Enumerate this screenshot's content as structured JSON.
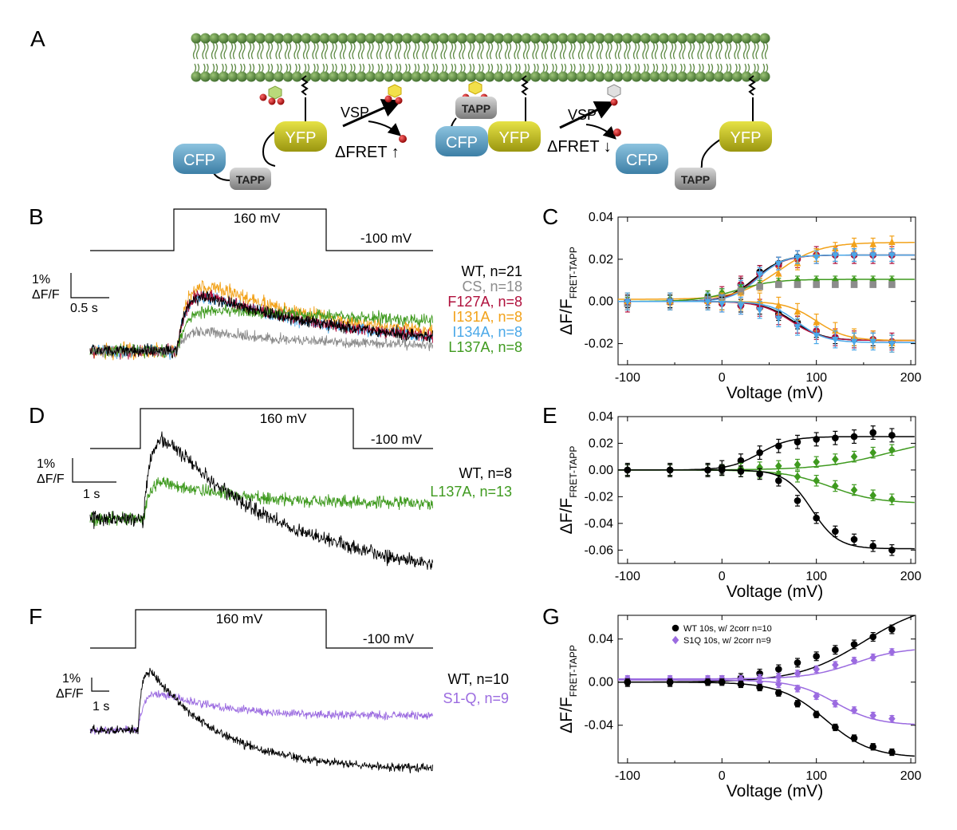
{
  "panels": {
    "A": "A",
    "B": "B",
    "C": "C",
    "D": "D",
    "E": "E",
    "F": "F",
    "G": "G"
  },
  "schematic": {
    "vsp": "VSP",
    "dfret_up": "ΔFRET ↑",
    "dfret_down": "ΔFRET ↓",
    "cfp": "CFP",
    "yfp": "YFP",
    "tapp": "TAPP"
  },
  "protocol": {
    "step_label": "160 mV",
    "hold_label": "-100 mV"
  },
  "scale_bars": {
    "y_label_1": "1%",
    "y_label_2": "ΔF/F",
    "B_time": "0.5 s",
    "D_time": "1 s",
    "F_time": "1 s"
  },
  "legends": {
    "B": [
      {
        "label": "WT, n=21",
        "color": "#000000"
      },
      {
        "label": "CS, n=18",
        "color": "#8c8c8c"
      },
      {
        "label": "F127A, n=8",
        "color": "#b0103c"
      },
      {
        "label": "I131A, n=8",
        "color": "#f2a21a"
      },
      {
        "label": "I134A, n=8",
        "color": "#4aa8e8"
      },
      {
        "label": "L137A, n=8",
        "color": "#3f9a1f"
      }
    ],
    "D": [
      {
        "label": "WT, n=8",
        "color": "#000000"
      },
      {
        "label": "L137A, n=13",
        "color": "#3f9a1f"
      }
    ],
    "F": [
      {
        "label": "WT, n=10",
        "color": "#000000"
      },
      {
        "label": "S1-Q, n=9",
        "color": "#9b6be0"
      }
    ]
  },
  "chart_data": [
    {
      "panel": "C",
      "type": "scatter",
      "xlabel": "Voltage (mV)",
      "ylabel_main": "ΔF/F",
      "ylabel_sub": "FRET-TAPP",
      "xlim": [
        -110,
        205
      ],
      "ylim": [
        -0.03,
        0.04
      ],
      "xticks": [
        -100,
        0,
        100,
        200
      ],
      "xtick_labels": [
        "-100",
        "0",
        "100",
        "200"
      ],
      "yticks": [
        -0.02,
        0.0,
        0.02,
        0.04
      ],
      "ytick_labels": [
        "-0.02",
        "0.00",
        "0.02",
        "0.04"
      ],
      "x": [
        -100,
        -55,
        -15,
        0,
        20,
        40,
        60,
        80,
        100,
        120,
        140,
        160,
        180
      ],
      "series": [
        {
          "color": "#000000",
          "marker": "circle",
          "values": [
            -0.001,
            0.0,
            0.001,
            0.003,
            0.008,
            0.014,
            0.018,
            0.021,
            0.022,
            0.022,
            0.022,
            0.022,
            0.022
          ],
          "err": 0.003,
          "fit": {
            "a": 0.0,
            "b": 0.022,
            "v": 35,
            "k": 15
          }
        },
        {
          "color": "#b0103c",
          "marker": "circle",
          "values": [
            -0.001,
            0.0,
            0.001,
            0.003,
            0.008,
            0.013,
            0.017,
            0.02,
            0.022,
            0.022,
            0.022,
            0.022,
            0.022
          ],
          "err": 0.004,
          "fit": {
            "a": 0.0,
            "b": 0.022,
            "v": 37,
            "k": 15
          }
        },
        {
          "color": "#f2a21a",
          "marker": "triangle",
          "values": [
            0.001,
            0.001,
            0.001,
            0.002,
            0.004,
            0.008,
            0.013,
            0.018,
            0.022,
            0.025,
            0.027,
            0.027,
            0.028
          ],
          "err": 0.003,
          "fit": {
            "a": 0.001,
            "b": 0.028,
            "v": 60,
            "k": 22
          }
        },
        {
          "color": "#4aa8e8",
          "marker": "tri-down",
          "values": [
            -0.001,
            0.0,
            0.001,
            0.003,
            0.007,
            0.013,
            0.018,
            0.021,
            0.021,
            0.022,
            0.022,
            0.022,
            0.022
          ],
          "err": 0.003,
          "fit": {
            "a": 0.0,
            "b": 0.022,
            "v": 38,
            "k": 14
          }
        },
        {
          "color": "#3f9a1f",
          "marker": "diamond",
          "values": [
            0.0,
            0.001,
            0.003,
            0.004,
            0.006,
            0.008,
            0.009,
            0.01,
            0.01,
            0.01,
            0.01,
            0.01,
            0.01
          ],
          "err": 0.002,
          "fit": {
            "a": 0.0,
            "b": 0.0105,
            "v": 15,
            "k": 20
          }
        },
        {
          "color": "#8c8c8c",
          "marker": "square",
          "values": [
            -0.001,
            0.0,
            0.001,
            0.002,
            0.005,
            0.007,
            0.008,
            0.008,
            0.008,
            0.008,
            0.008,
            0.008,
            0.008
          ],
          "err": 0.0,
          "fit": null
        },
        {
          "color": "#000000",
          "marker": "circle",
          "values": [
            0.0,
            0.0,
            0.0,
            -0.001,
            -0.002,
            -0.003,
            -0.006,
            -0.01,
            -0.014,
            -0.017,
            -0.018,
            -0.018,
            -0.019
          ],
          "err": 0.003,
          "fit": {
            "a": 0.0,
            "b": -0.0185,
            "v": 75,
            "k": 16
          }
        },
        {
          "color": "#b0103c",
          "marker": "circle",
          "values": [
            0.0,
            0.0,
            0.0,
            -0.001,
            -0.002,
            -0.003,
            -0.007,
            -0.011,
            -0.014,
            -0.017,
            -0.018,
            -0.018,
            -0.019
          ],
          "err": 0.004,
          "fit": {
            "a": 0.0,
            "b": -0.0185,
            "v": 73,
            "k": 16
          }
        },
        {
          "color": "#f2a21a",
          "marker": "triangle",
          "values": [
            0.0,
            0.0,
            0.0,
            0.0,
            0.0,
            0.0,
            -0.002,
            -0.005,
            -0.01,
            -0.014,
            -0.017,
            -0.018,
            -0.02
          ],
          "err": 0.004,
          "fit": {
            "a": 0.0,
            "b": -0.0185,
            "v": 100,
            "k": 16
          }
        },
        {
          "color": "#4aa8e8",
          "marker": "tri-down",
          "values": [
            0.0,
            0.0,
            0.0,
            -0.001,
            -0.002,
            -0.004,
            -0.008,
            -0.012,
            -0.016,
            -0.018,
            -0.019,
            -0.019,
            -0.02
          ],
          "err": 0.004,
          "fit": {
            "a": 0.0,
            "b": -0.0195,
            "v": 80,
            "k": 15
          }
        }
      ]
    },
    {
      "panel": "E",
      "type": "scatter",
      "xlabel": "Voltage (mV)",
      "ylabel_main": "ΔF/F",
      "ylabel_sub": "FRET-TAPP",
      "xlim": [
        -110,
        205
      ],
      "ylim": [
        -0.07,
        0.04
      ],
      "xticks": [
        -100,
        0,
        100,
        200
      ],
      "xtick_labels": [
        "-100",
        "0",
        "100",
        "200"
      ],
      "yticks": [
        -0.06,
        -0.04,
        -0.02,
        0.0,
        0.02,
        0.04
      ],
      "ytick_labels": [
        "-0.06",
        "-0.04",
        "-0.02",
        "0.00",
        "0.02",
        "0.04"
      ],
      "x": [
        -100,
        -55,
        -15,
        0,
        20,
        40,
        60,
        80,
        100,
        120,
        140,
        160,
        180
      ],
      "series": [
        {
          "color": "#000000",
          "marker": "circle",
          "values": [
            0.0,
            0.0,
            0.0,
            0.002,
            0.007,
            0.013,
            0.018,
            0.021,
            0.023,
            0.024,
            0.025,
            0.028,
            0.026
          ],
          "err": 0.005,
          "fit": {
            "a": 0.0,
            "b": 0.025,
            "v": 40,
            "k": 16
          }
        },
        {
          "color": "#3f9a1f",
          "marker": "diamond",
          "values": [
            0.0,
            0.0,
            0.0,
            0.0,
            0.001,
            0.002,
            0.003,
            0.004,
            0.006,
            0.008,
            0.01,
            0.013,
            0.015
          ],
          "err": 0.004,
          "fit": {
            "a": 0.0,
            "b": 0.025,
            "v": 175,
            "k": 35
          }
        },
        {
          "color": "#3f9a1f",
          "marker": "diamond",
          "values": [
            0.0,
            0.0,
            0.0,
            0.0,
            -0.001,
            -0.002,
            -0.003,
            -0.005,
            -0.008,
            -0.012,
            -0.015,
            -0.019,
            -0.022
          ],
          "err": 0.004,
          "fit": {
            "a": 0.0,
            "b": -0.025,
            "v": 115,
            "k": 25
          }
        },
        {
          "color": "#000000",
          "marker": "circle",
          "values": [
            0.0,
            0.0,
            0.0,
            0.0,
            -0.001,
            -0.003,
            -0.008,
            -0.023,
            -0.036,
            -0.046,
            -0.052,
            -0.057,
            -0.06
          ],
          "err": 0.004,
          "fit": {
            "a": 0.0,
            "b": -0.059,
            "v": 95,
            "k": 14
          }
        }
      ]
    },
    {
      "panel": "G",
      "type": "scatter",
      "xlabel": "Voltage (mV)",
      "ylabel_main": "ΔF/F",
      "ylabel_sub": "FRET-TAPP",
      "xlim": [
        -110,
        205
      ],
      "ylim": [
        -0.075,
        0.062
      ],
      "xticks": [
        -100,
        0,
        100,
        200
      ],
      "xtick_labels": [
        "-100",
        "0",
        "100",
        "200"
      ],
      "yticks": [
        -0.04,
        0.0,
        0.04
      ],
      "ytick_labels": [
        "-0.04",
        "0.00",
        "0.04"
      ],
      "legend": [
        {
          "label": "WT 10s, w/ 2corr n=10",
          "color": "#000000",
          "marker": "circle"
        },
        {
          "label": "S1Q 10s, w/ 2corr n=9",
          "color": "#9b6be0",
          "marker": "diamond"
        }
      ],
      "x": [
        -100,
        -55,
        -15,
        0,
        20,
        40,
        60,
        80,
        100,
        120,
        140,
        160,
        180
      ],
      "series": [
        {
          "color": "#000000",
          "marker": "circle",
          "values": [
            0.0,
            0.0,
            0.001,
            0.002,
            0.004,
            0.008,
            0.012,
            0.018,
            0.024,
            0.03,
            0.035,
            0.042,
            0.049
          ],
          "err": 0.004,
          "fit": {
            "a": 0.0,
            "b": 0.075,
            "v": 150,
            "k": 35
          }
        },
        {
          "color": "#9b6be0",
          "marker": "diamond",
          "values": [
            0.003,
            0.003,
            0.003,
            0.003,
            0.003,
            0.004,
            0.005,
            0.008,
            0.012,
            0.016,
            0.02,
            0.023,
            0.028
          ],
          "err": 0.003,
          "fit": {
            "a": 0.003,
            "b": 0.032,
            "v": 140,
            "k": 25
          }
        },
        {
          "color": "#9b6be0",
          "marker": "diamond",
          "values": [
            0.002,
            0.002,
            0.002,
            0.002,
            0.001,
            0.0,
            -0.002,
            -0.006,
            -0.013,
            -0.02,
            -0.026,
            -0.031,
            -0.034
          ],
          "err": 0.003,
          "fit": {
            "a": 0.002,
            "b": -0.04,
            "v": 120,
            "k": 22
          }
        },
        {
          "color": "#000000",
          "marker": "circle",
          "values": [
            0.0,
            0.0,
            0.0,
            0.0,
            -0.002,
            -0.005,
            -0.01,
            -0.02,
            -0.03,
            -0.042,
            -0.052,
            -0.06,
            -0.065
          ],
          "err": 0.003,
          "fit": {
            "a": 0.0,
            "b": -0.07,
            "v": 110,
            "k": 24
          }
        }
      ]
    }
  ]
}
